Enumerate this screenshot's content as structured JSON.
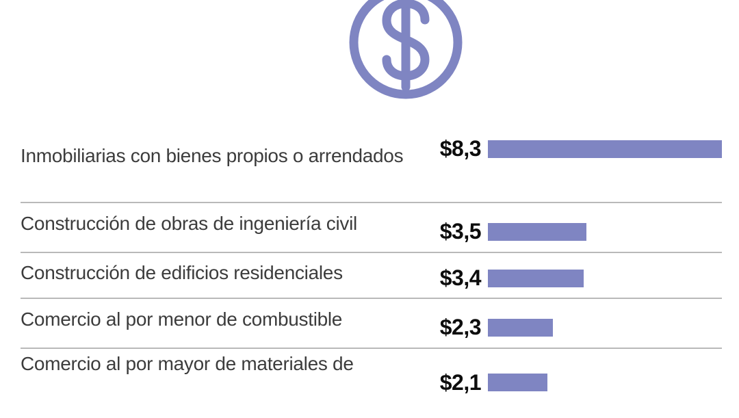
{
  "icon": {
    "name": "dollar-circle-icon",
    "symbol": "$",
    "color": "#7f85c2"
  },
  "chart_data": {
    "type": "bar",
    "orientation": "horizontal",
    "title": "",
    "categories": [
      "Inmobiliarias con bienes propios o arrendados",
      "Construcción de obras de ingeniería civil",
      "Construcción de edificios residenciales",
      "Comercio al por menor de combustible",
      "Comercio al por mayor de materiales de"
    ],
    "values": [
      8.3,
      3.5,
      3.4,
      2.3,
      2.1
    ],
    "value_labels": [
      "$8,3",
      "$3,5",
      "$3,4",
      "$2,3",
      "$2,1"
    ],
    "xlim": [
      0,
      8.3
    ],
    "grid": false,
    "legend": false,
    "bar_color": "#7f85c2",
    "value_label_color": "#0d0d0d",
    "category_label_color": "#3c3c3c",
    "divider_color": "#b9b9b9"
  }
}
